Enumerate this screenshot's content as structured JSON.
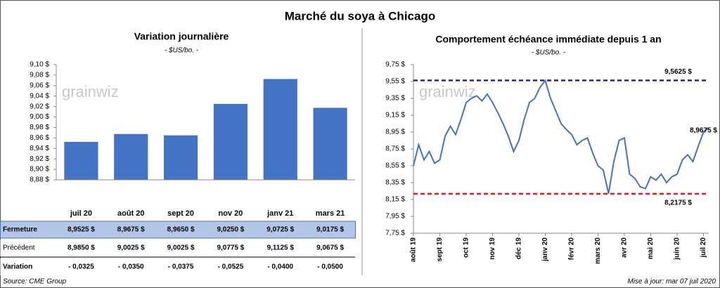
{
  "title": "Marché du soya à Chicago",
  "chart_data": [
    {
      "type": "bar",
      "title": "Variation journalière",
      "subtitle": "- $US/bo. -",
      "watermark": "grainwiz",
      "categories": [
        "juil 20",
        "août 20",
        "sept 20",
        "nov 20",
        "janv 21",
        "mars 21"
      ],
      "values": [
        8.9525,
        8.9675,
        8.965,
        9.025,
        9.0725,
        9.0175
      ],
      "color": "#4472c4",
      "ylim": [
        8.88,
        9.1
      ],
      "yticks": [
        {
          "value": 8.88,
          "label": "8,88 $"
        },
        {
          "value": 8.9,
          "label": "8,90 $"
        },
        {
          "value": 8.92,
          "label": "8,92 $"
        },
        {
          "value": 8.94,
          "label": "8,94 $"
        },
        {
          "value": 8.96,
          "label": "8,96 $"
        },
        {
          "value": 8.98,
          "label": "8,98 $"
        },
        {
          "value": 9.0,
          "label": "9,00 $"
        },
        {
          "value": 9.02,
          "label": "9,02 $"
        },
        {
          "value": 9.04,
          "label": "9,04 $"
        },
        {
          "value": 9.06,
          "label": "9,06 $"
        },
        {
          "value": 9.08,
          "label": "9,08 $"
        },
        {
          "value": 9.1,
          "label": "9,10 $"
        }
      ],
      "grid": false
    },
    {
      "type": "line",
      "title": "Comportement  échéance immédiate depuis 1 an",
      "subtitle": "- $US/bo. -",
      "watermark": "grainwiz",
      "categories": [
        "août 19",
        null,
        null,
        null,
        null,
        "sept 19",
        null,
        null,
        null,
        null,
        "oct 19",
        null,
        null,
        null,
        null,
        "nov 19",
        null,
        null,
        null,
        null,
        "déc 19",
        null,
        null,
        null,
        null,
        "janv 20",
        null,
        null,
        null,
        null,
        "févr 20",
        null,
        null,
        null,
        null,
        "mars 20",
        null,
        null,
        null,
        null,
        "avr 20",
        null,
        null,
        null,
        null,
        "mai 20",
        null,
        null,
        null,
        null,
        "juin 20",
        null,
        null,
        null,
        null,
        "juil 20",
        null
      ],
      "series": [
        {
          "name": "Échéance immédiate",
          "color": "#4472c4",
          "values": [
            8.55,
            8.8,
            8.62,
            8.72,
            8.58,
            8.62,
            8.9,
            9.02,
            8.92,
            9.1,
            9.3,
            9.35,
            9.38,
            9.32,
            9.4,
            9.3,
            9.18,
            9.05,
            8.9,
            8.72,
            8.85,
            9.1,
            9.3,
            9.35,
            9.48,
            9.56,
            9.35,
            9.2,
            9.05,
            8.98,
            8.92,
            8.8,
            8.85,
            8.88,
            8.7,
            8.55,
            8.5,
            8.22,
            8.6,
            8.85,
            8.88,
            8.45,
            8.4,
            8.3,
            8.28,
            8.42,
            8.38,
            8.45,
            8.35,
            8.42,
            8.45,
            8.62,
            8.68,
            8.6,
            8.78,
            8.95,
            9.0
          ]
        }
      ],
      "ylim": [
        7.75,
        9.75
      ],
      "yticks": [
        {
          "value": 7.75,
          "label": "7,75 $"
        },
        {
          "value": 7.95,
          "label": "7,95 $"
        },
        {
          "value": 8.15,
          "label": "8,15 $"
        },
        {
          "value": 8.35,
          "label": "8,35 $"
        },
        {
          "value": 8.55,
          "label": "8,55 $"
        },
        {
          "value": 8.75,
          "label": "8,75 $"
        },
        {
          "value": 8.95,
          "label": "8,95 $"
        },
        {
          "value": 9.15,
          "label": "9,15 $"
        },
        {
          "value": 9.35,
          "label": "9,35 $"
        },
        {
          "value": 9.55,
          "label": "9,55 $"
        },
        {
          "value": 9.75,
          "label": "9,75 $"
        }
      ],
      "reference_lines": [
        {
          "value": 9.5625,
          "label": "9,5625 $",
          "color": "#2424a8"
        },
        {
          "value": 8.2175,
          "label": "8,2175 $",
          "color": "#e81c1c"
        }
      ],
      "annotations": [
        {
          "value": 8.9675,
          "label": "8,9675 $"
        }
      ],
      "grid": false
    }
  ],
  "table": {
    "rows": [
      {
        "label": "Fermeture",
        "cells": [
          "8,9525  $",
          "8,9675  $",
          "8,9650  $",
          "9,0250  $",
          "9,0725  $",
          "9,0175  $"
        ]
      },
      {
        "label": "Précédent",
        "cells": [
          "8,9850  $",
          "9,0025  $",
          "9,0025  $",
          "9,0775  $",
          "9,1125  $",
          "9,0675  $"
        ]
      },
      {
        "label": "Variation",
        "cells": [
          "- 0,0325",
          "- 0,0350",
          "- 0,0375",
          "- 0,0525",
          "- 0,0400",
          "- 0,0500"
        ]
      }
    ]
  },
  "source": "Source: CME Group",
  "updated": "Mise à jour: mar 07 juil 2020"
}
